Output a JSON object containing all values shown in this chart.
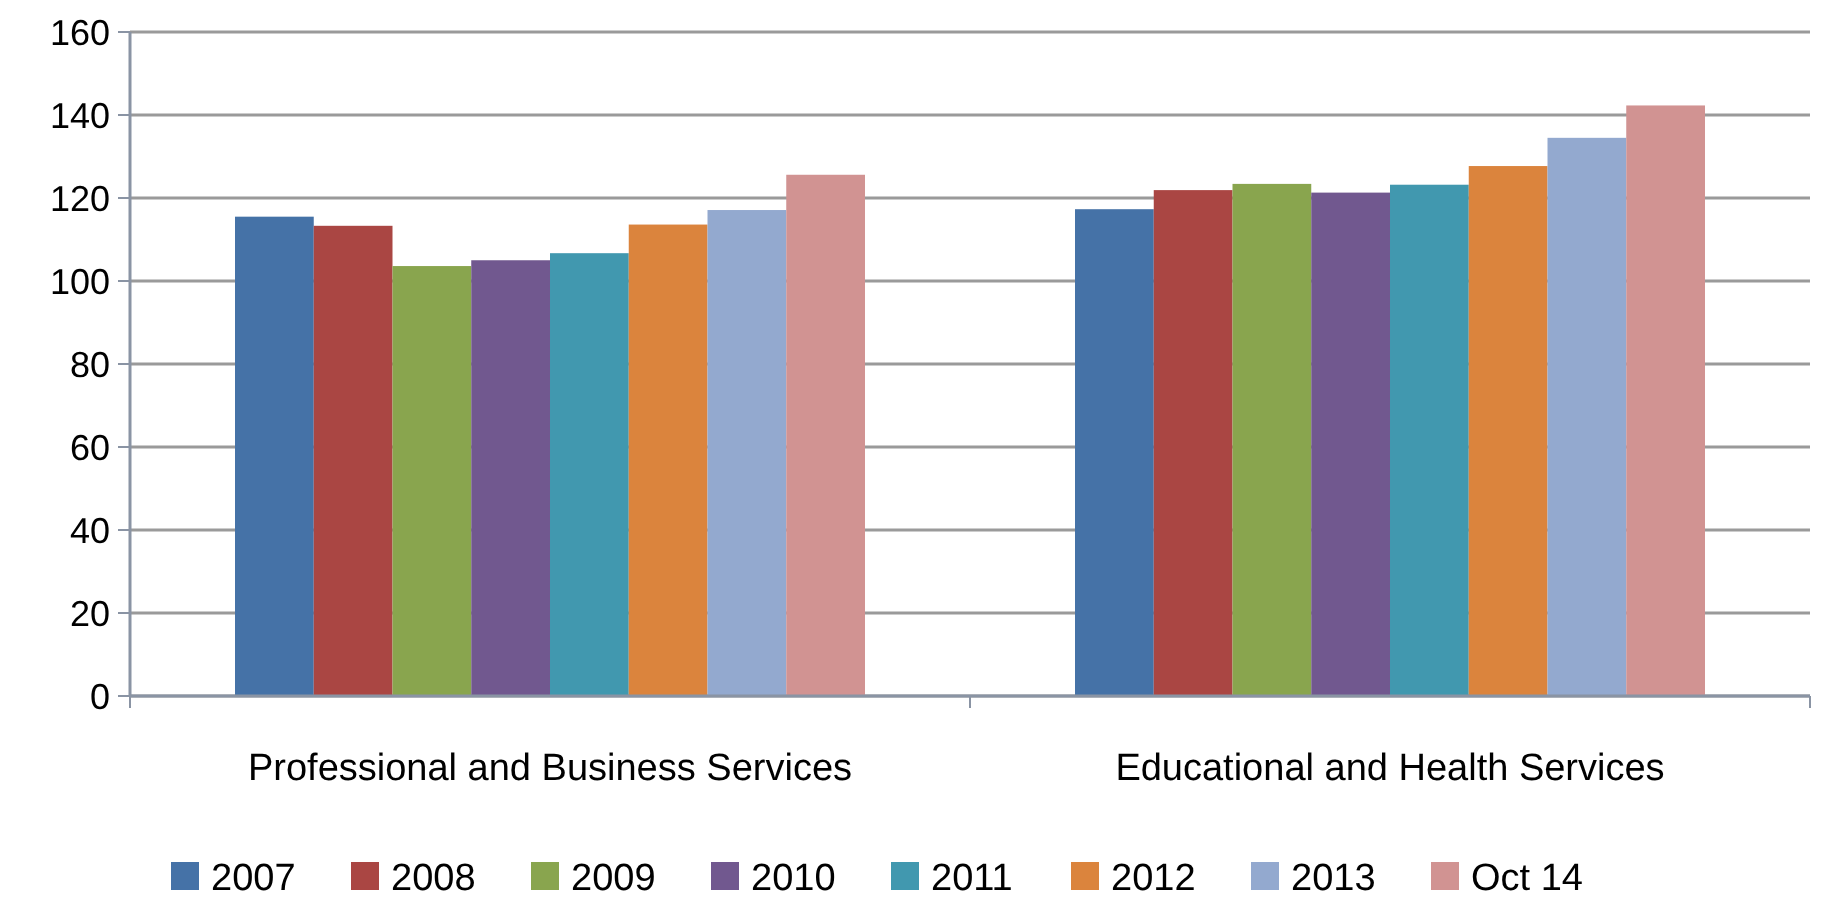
{
  "chart_data": {
    "type": "bar",
    "categories": [
      "Professional and Business Services",
      "Educational and Health Services"
    ],
    "series": [
      {
        "name": "2007",
        "color": "#4572a7",
        "values": [
          115.5,
          117.3
        ]
      },
      {
        "name": "2008",
        "color": "#aa4643",
        "values": [
          113.3,
          121.9
        ]
      },
      {
        "name": "2009",
        "color": "#89a54e",
        "values": [
          103.6,
          123.4
        ]
      },
      {
        "name": "2010",
        "color": "#71588f",
        "values": [
          105,
          121.3
        ]
      },
      {
        "name": "2011",
        "color": "#4198af",
        "values": [
          106.7,
          123.2
        ]
      },
      {
        "name": "2012",
        "color": "#db843d",
        "values": [
          113.6,
          127.7
        ]
      },
      {
        "name": "2013",
        "color": "#93a9cf",
        "values": [
          117.1,
          134.5
        ]
      },
      {
        "name": "Oct 14",
        "color": "#d19392",
        "values": [
          125.6,
          142.3
        ]
      }
    ],
    "ylim": [
      0,
      160
    ],
    "yticks": [
      0,
      20,
      40,
      60,
      80,
      100,
      120,
      140,
      160
    ],
    "grid": "y",
    "legend": "bottom"
  }
}
